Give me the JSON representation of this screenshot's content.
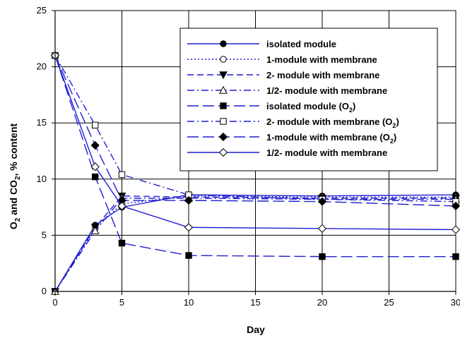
{
  "chart_data": {
    "type": "line",
    "xlabel": "Day",
    "ylabel_parts": [
      "O",
      "2",
      " and CO",
      "2",
      ", % content"
    ],
    "xlim": [
      0,
      30
    ],
    "ylim": [
      0,
      25
    ],
    "xticks": [
      0,
      5,
      10,
      15,
      20,
      25,
      30
    ],
    "yticks": [
      0,
      5,
      10,
      15,
      20,
      25
    ],
    "grid": true,
    "legend_position": "top-right",
    "series": [
      {
        "name": "isolated module",
        "sub": "",
        "x": [
          0,
          3,
          5,
          10,
          20,
          30
        ],
        "values": [
          0,
          5.9,
          7.5,
          8.6,
          8.5,
          8.6
        ],
        "dash": "solid",
        "marker": "circle",
        "fill": "filled"
      },
      {
        "name": "1-module with membrane",
        "sub": "",
        "x": [
          0,
          3,
          5,
          10,
          20,
          30
        ],
        "values": [
          0,
          5.6,
          7.8,
          8.5,
          8.4,
          8.4
        ],
        "dash": "dot",
        "marker": "circle",
        "fill": "open"
      },
      {
        "name": "2- module with membrane",
        "sub": "",
        "x": [
          0,
          3,
          5,
          10,
          20,
          30
        ],
        "values": [
          0,
          5.7,
          8.5,
          8.4,
          8.3,
          8.3
        ],
        "dash": "dash",
        "marker": "triangle-down",
        "fill": "filled"
      },
      {
        "name": "1/2- module with membrane",
        "sub": "",
        "x": [
          0,
          3,
          5,
          10,
          20,
          30
        ],
        "values": [
          0,
          5.4,
          8.3,
          8.3,
          8.2,
          8.2
        ],
        "dash": "dashdot",
        "marker": "triangle-up",
        "fill": "open"
      },
      {
        "name": "isolated module (O",
        "sub": "2",
        "x": [
          0,
          3,
          5,
          10,
          20,
          30
        ],
        "values": [
          21,
          10.2,
          4.3,
          3.2,
          3.1,
          3.1
        ],
        "dash": "longdash",
        "marker": "square",
        "fill": "filled"
      },
      {
        "name": "2- module with membrane (O",
        "sub": "2",
        "x": [
          0,
          3,
          5,
          10,
          20,
          30
        ],
        "values": [
          21,
          14.8,
          10.4,
          8.6,
          8.2,
          8.0
        ],
        "dash": "dashdot",
        "marker": "square",
        "fill": "open"
      },
      {
        "name": "1-module with membrane (O",
        "sub": "2",
        "x": [
          0,
          3,
          5,
          10,
          20,
          30
        ],
        "values": [
          21,
          13.0,
          8.1,
          8.1,
          8.0,
          7.6
        ],
        "dash": "longdash",
        "marker": "diamond",
        "fill": "filled"
      },
      {
        "name": "1/2- module with membrane",
        "sub": "",
        "x": [
          0,
          3,
          5,
          10,
          20,
          30
        ],
        "values": [
          21,
          11.1,
          7.6,
          5.7,
          5.6,
          5.5
        ],
        "dash": "solid",
        "marker": "diamond",
        "fill": "open"
      }
    ]
  },
  "colors": {
    "line": "#1f1fd1",
    "grid": "#000000",
    "axis": "#000000",
    "marker_fill": "#000000",
    "background": "#ffffff"
  }
}
